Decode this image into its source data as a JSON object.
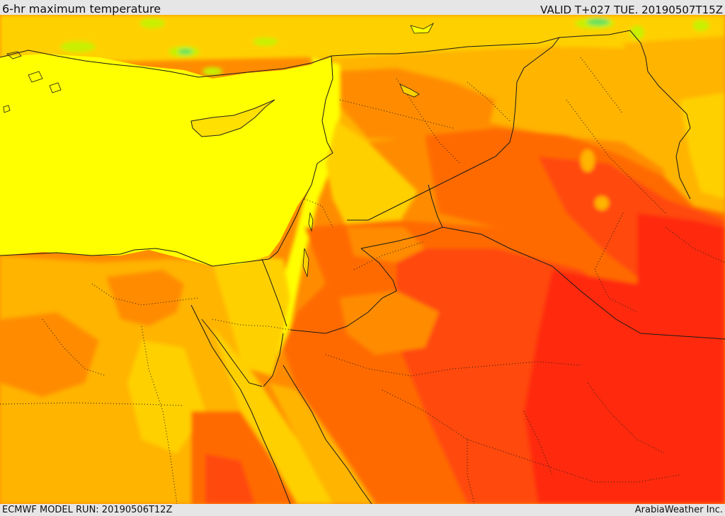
{
  "header": {
    "title": "6-hr maximum temperature",
    "valid": "VALID T+027 TUE. 20190507T15Z"
  },
  "footer": {
    "model_run": "ECMWF MODEL RUN: 20190506T12Z",
    "credit": "ArabiaWeather Inc."
  },
  "map": {
    "colors": {
      "green": "#5fe05f",
      "light_green": "#c8f000",
      "yellow": "#ffff00",
      "gold": "#ffd000",
      "amber": "#ffb400",
      "orange": "#ff8c00",
      "dark_orange": "#ff6a00",
      "red_orange": "#ff4a10",
      "red": "#ff2a10"
    }
  }
}
